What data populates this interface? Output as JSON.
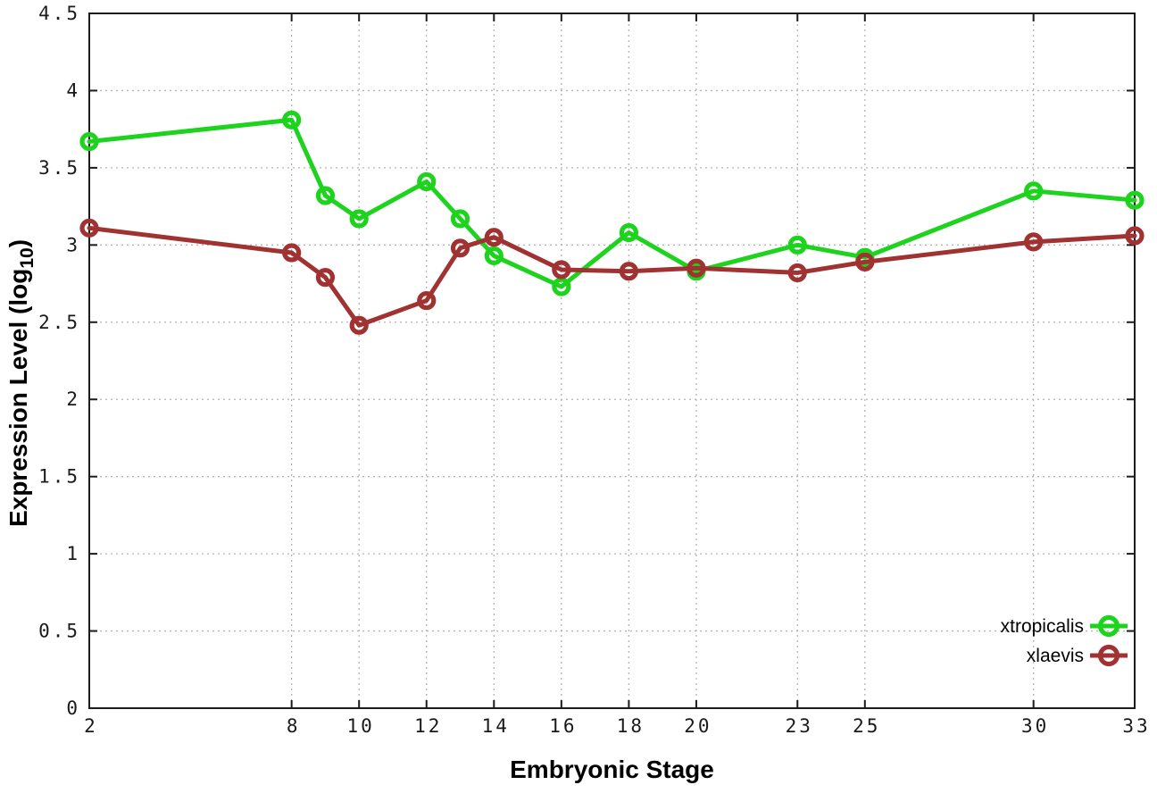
{
  "chart_data": {
    "type": "line",
    "title": "",
    "xlabel": "Embryonic Stage",
    "ylabel": "Expression Level (log10)",
    "ylabel_parts": {
      "pre": "Expression Level (log",
      "sub": "10",
      "post": ")"
    },
    "x": [
      2,
      8,
      9,
      10,
      12,
      13,
      14,
      16,
      18,
      20,
      23,
      25,
      30,
      33
    ],
    "series": [
      {
        "name": "xtropicalis",
        "color": "#1dd31d",
        "marker": "open-circle",
        "values": [
          3.67,
          3.81,
          3.32,
          3.17,
          3.41,
          3.17,
          2.93,
          2.73,
          3.08,
          2.83,
          3.0,
          2.92,
          3.35,
          3.29
        ]
      },
      {
        "name": "xlaevis",
        "color": "#a03232",
        "marker": "open-circle",
        "values": [
          3.11,
          2.95,
          2.79,
          2.48,
          2.64,
          2.98,
          3.05,
          2.84,
          2.83,
          2.85,
          2.82,
          2.89,
          3.02,
          3.06
        ]
      }
    ],
    "xlim": [
      2,
      33
    ],
    "ylim": [
      0,
      4.5
    ],
    "xticks": [
      2,
      8,
      10,
      12,
      14,
      16,
      18,
      20,
      23,
      25,
      30,
      33
    ],
    "xtick_labels": [
      "2",
      "8",
      "10",
      "12",
      "14",
      "16",
      "18",
      "20",
      "23",
      "25",
      "30",
      "33"
    ],
    "yticks": [
      0,
      0.5,
      1,
      1.5,
      2,
      2.5,
      3,
      3.5,
      4,
      4.5
    ],
    "ytick_labels": [
      "0",
      "0.5",
      "1",
      "1.5",
      "2",
      "2.5",
      "3",
      "3.5",
      "4",
      "4.5"
    ],
    "grid": true,
    "grid_style": "dotted",
    "legend_position": "bottom-right",
    "legend_order": [
      "xtropicalis",
      "xlaevis"
    ]
  },
  "style": {
    "background": "#ffffff",
    "frame_color": "#1c1c1c",
    "grid_color": "#b4b4b4",
    "tick_text_color": "#1a1a1a",
    "line_width": 5,
    "marker_radius": 8,
    "marker_stroke": 5.2
  }
}
